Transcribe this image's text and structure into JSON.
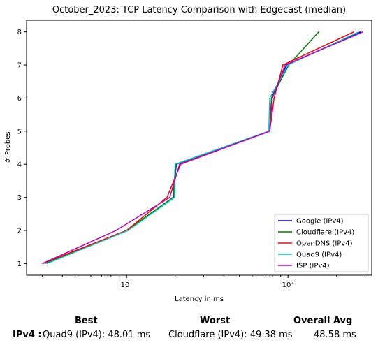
{
  "chart_data": {
    "type": "line",
    "title": "October_2023: TCP Latency Comparison with Edgecast (median)",
    "xlabel": "Latency in ms",
    "ylabel": "# Probes",
    "xscale": "log",
    "xlim": [
      2.4,
      330
    ],
    "ylim": [
      0.65,
      8.35
    ],
    "xticks": [
      {
        "value": 10,
        "label": "10^1"
      },
      {
        "value": 100,
        "label": "10^2"
      }
    ],
    "yticks": [
      1,
      2,
      3,
      4,
      5,
      6,
      7,
      8
    ],
    "grid": false,
    "legend": "bottom-right",
    "series": [
      {
        "name": "Google (IPv4)",
        "color": "#0000cc",
        "points": [
          [
            3.1,
            1
          ],
          [
            10.1,
            2
          ],
          [
            19.5,
            3
          ],
          [
            20.3,
            4
          ],
          [
            77,
            5
          ],
          [
            79,
            6
          ],
          [
            98,
            7
          ],
          [
            282,
            8
          ]
        ]
      },
      {
        "name": "Cloudflare (IPv4)",
        "color": "#008000",
        "points": [
          [
            3.1,
            1
          ],
          [
            10.0,
            2
          ],
          [
            19.4,
            3
          ],
          [
            20.1,
            4
          ],
          [
            77,
            5
          ],
          [
            79,
            6
          ],
          [
            101,
            7
          ],
          [
            155,
            8
          ]
        ]
      },
      {
        "name": "OpenDNS (IPv4)",
        "color": "#ff0000",
        "points": [
          [
            3.0,
            1
          ],
          [
            10.0,
            2
          ],
          [
            17.8,
            3
          ],
          [
            21.6,
            4
          ],
          [
            77,
            5
          ],
          [
            82,
            6
          ],
          [
            93,
            7
          ],
          [
            256,
            8
          ]
        ]
      },
      {
        "name": "Quad9 (IPv4)",
        "color": "#00bfbf",
        "points": [
          [
            3.2,
            1
          ],
          [
            10.2,
            2
          ],
          [
            19.8,
            3
          ],
          [
            20.0,
            4
          ],
          [
            76,
            5
          ],
          [
            77,
            6
          ],
          [
            100,
            7
          ],
          [
            275,
            8
          ]
        ]
      },
      {
        "name": "ISP (IPv4)",
        "color": "#bf00bf",
        "points": [
          [
            3.0,
            1
          ],
          [
            8.6,
            2
          ],
          [
            18.5,
            3
          ],
          [
            21.3,
            4
          ],
          [
            77,
            5
          ],
          [
            80,
            6
          ],
          [
            96,
            7
          ],
          [
            292,
            8
          ]
        ]
      }
    ]
  },
  "summary": {
    "best_header": "Best",
    "worst_header": "Worst",
    "avg_header": "Overall Avg",
    "row_label": "IPv4 :",
    "best_value": "Quad9 (IPv4): 48.01 ms",
    "worst_value": "Cloudflare (IPv4): 49.38 ms",
    "avg_value": "48.58 ms"
  }
}
